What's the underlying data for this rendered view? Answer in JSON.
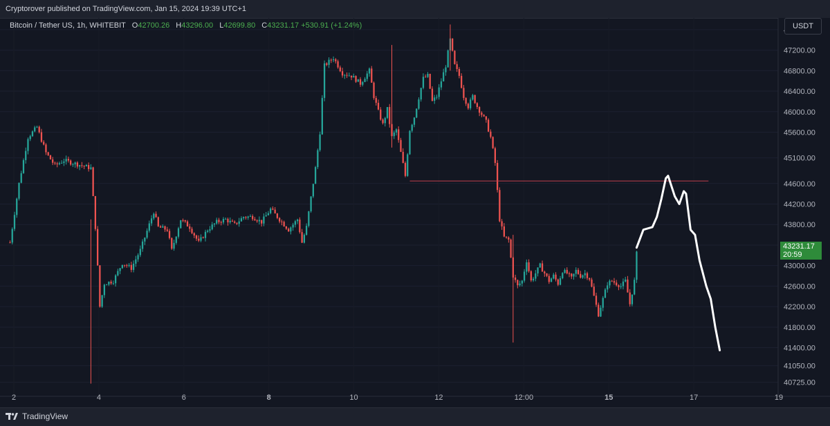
{
  "header": {
    "published": "Cryptorover published on TradingView.com, Jan 15, 2024 19:39 UTC+1"
  },
  "legend": {
    "symbol": "Bitcoin / Tether US, 1h, WHITEBIT",
    "open_label": "O",
    "open": "42700.26",
    "high_label": "H",
    "high": "43296.00",
    "low_label": "L",
    "low": "42699.80",
    "close_label": "C",
    "close": "43231.17",
    "change": "+530.91 (+1.24%)"
  },
  "currency_button": "USDT",
  "price_tag": {
    "price": "43231.17",
    "countdown": "20:59"
  },
  "footer": {
    "brand": "TradingView"
  },
  "colors": {
    "background": "#131722",
    "up": "#26a69a",
    "down": "#ef5350",
    "level_line": "#c2404d",
    "drawing": "#ffffff",
    "price_tag": "#2e8b3a"
  },
  "chart_data": {
    "type": "candlestick",
    "timeframe": "1h",
    "y_ticks": [
      47600,
      47200,
      46800,
      46400,
      46000,
      45600,
      45100,
      44600,
      44200,
      43800,
      43400,
      43000,
      42600,
      42200,
      41800,
      41400,
      41050,
      40725
    ],
    "y_tick_labels": [
      "47600.00",
      "47200.00",
      "46800.00",
      "46400.00",
      "46000.00",
      "45600.00",
      "45100.00",
      "44600.00",
      "44200.00",
      "43800.00",
      "43400.00",
      "43000.00",
      "42600.00",
      "42200.00",
      "41800.00",
      "41400.00",
      "41050.00",
      "40725.00"
    ],
    "x_tick_labels": [
      "2",
      "4",
      "6",
      "8",
      "10",
      "12",
      "12:00",
      "15",
      "17",
      "19"
    ],
    "x_tick_bold": [
      "8",
      "15"
    ],
    "close_path": [
      [
        0,
        43450
      ],
      [
        4,
        44600
      ],
      [
        8,
        45500
      ],
      [
        12,
        45700
      ],
      [
        16,
        45200
      ],
      [
        20,
        44950
      ],
      [
        24,
        45050
      ],
      [
        28,
        45000
      ],
      [
        32,
        44950
      ],
      [
        36,
        44900
      ],
      [
        38,
        43750
      ],
      [
        40,
        42200
      ],
      [
        42,
        42650
      ],
      [
        46,
        42700
      ],
      [
        50,
        43050
      ],
      [
        54,
        42950
      ],
      [
        58,
        43300
      ],
      [
        62,
        43800
      ],
      [
        64,
        44050
      ],
      [
        66,
        43750
      ],
      [
        70,
        43700
      ],
      [
        72,
        43300
      ],
      [
        76,
        43900
      ],
      [
        80,
        43750
      ],
      [
        84,
        43450
      ],
      [
        88,
        43700
      ],
      [
        92,
        43850
      ],
      [
        96,
        43900
      ],
      [
        100,
        43800
      ],
      [
        104,
        43950
      ],
      [
        108,
        43950
      ],
      [
        112,
        43850
      ],
      [
        116,
        44100
      ],
      [
        120,
        43900
      ],
      [
        124,
        43700
      ],
      [
        128,
        43900
      ],
      [
        130,
        43450
      ],
      [
        132,
        43750
      ],
      [
        136,
        44900
      ],
      [
        138,
        45600
      ],
      [
        140,
        46900
      ],
      [
        144,
        47050
      ],
      [
        148,
        46750
      ],
      [
        152,
        46700
      ],
      [
        156,
        46550
      ],
      [
        160,
        46800
      ],
      [
        162,
        46300
      ],
      [
        164,
        46000
      ],
      [
        166,
        45750
      ],
      [
        168,
        46050
      ],
      [
        170,
        45500
      ],
      [
        172,
        45650
      ],
      [
        174,
        45200
      ],
      [
        176,
        44750
      ],
      [
        178,
        45650
      ],
      [
        180,
        45900
      ],
      [
        184,
        46650
      ],
      [
        186,
        46700
      ],
      [
        188,
        46200
      ],
      [
        190,
        46300
      ],
      [
        192,
        46600
      ],
      [
        194,
        46900
      ],
      [
        196,
        47400
      ],
      [
        198,
        46900
      ],
      [
        200,
        46700
      ],
      [
        202,
        46300
      ],
      [
        204,
        46100
      ],
      [
        206,
        46300
      ],
      [
        208,
        46100
      ],
      [
        210,
        45950
      ],
      [
        212,
        45800
      ],
      [
        214,
        45500
      ],
      [
        216,
        45000
      ],
      [
        218,
        43900
      ],
      [
        220,
        43550
      ],
      [
        222,
        43500
      ],
      [
        224,
        42800
      ],
      [
        226,
        42600
      ],
      [
        228,
        42700
      ],
      [
        230,
        43100
      ],
      [
        232,
        42700
      ],
      [
        234,
        42850
      ],
      [
        236,
        43000
      ],
      [
        238,
        42850
      ],
      [
        240,
        42700
      ],
      [
        242,
        42800
      ],
      [
        244,
        42650
      ],
      [
        246,
        42900
      ],
      [
        248,
        42850
      ],
      [
        250,
        42750
      ],
      [
        252,
        42900
      ],
      [
        254,
        42800
      ],
      [
        256,
        42850
      ],
      [
        258,
        42750
      ],
      [
        260,
        42400
      ],
      [
        262,
        42050
      ],
      [
        264,
        42350
      ],
      [
        266,
        42650
      ],
      [
        268,
        42700
      ],
      [
        270,
        42650
      ],
      [
        272,
        42600
      ],
      [
        274,
        42700
      ],
      [
        276,
        42250
      ],
      [
        278,
        42700
      ],
      [
        279,
        43231
      ]
    ],
    "wicks": [
      {
        "t": 36,
        "high": 43900,
        "low": 40700
      },
      {
        "t": 170,
        "high": 47300,
        "low": 45300
      },
      {
        "t": 196,
        "high": 47700,
        "low": 46800
      },
      {
        "t": 224,
        "high": 43600,
        "low": 41500
      }
    ],
    "horizontal_level": {
      "price": 44650,
      "from_t": 178,
      "to_t": 311
    },
    "drawn_projection": [
      [
        279,
        43350
      ],
      [
        282,
        43700
      ],
      [
        286,
        43750
      ],
      [
        288,
        43950
      ],
      [
        290,
        44300
      ],
      [
        292,
        44700
      ],
      [
        293,
        44750
      ],
      [
        296,
        44350
      ],
      [
        298,
        44200
      ],
      [
        300,
        44450
      ],
      [
        301,
        44400
      ],
      [
        303,
        43700
      ],
      [
        305,
        43600
      ],
      [
        307,
        43100
      ],
      [
        310,
        42600
      ],
      [
        312,
        42350
      ],
      [
        314,
        41800
      ],
      [
        316,
        41350
      ]
    ],
    "ylim": [
      40600,
      47800
    ],
    "xlim": [
      -2,
      342
    ]
  }
}
